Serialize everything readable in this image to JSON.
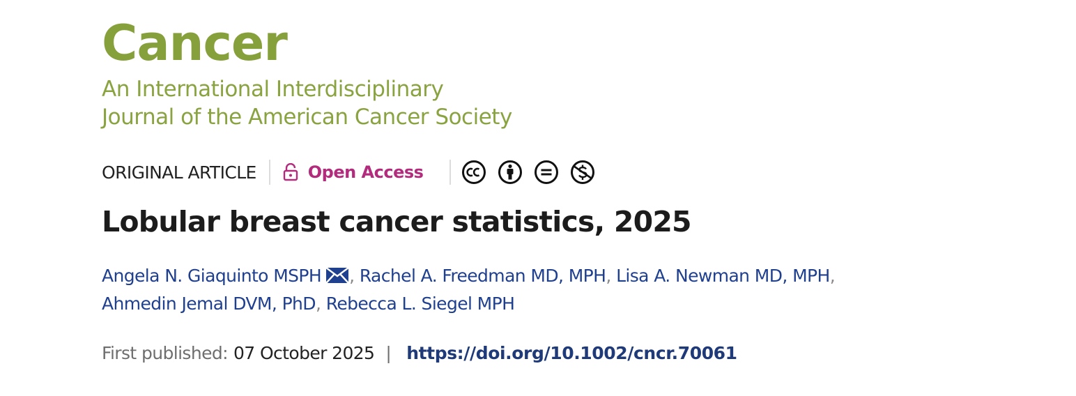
{
  "journal": {
    "name": "Cancer",
    "subtitle_line1": "An International Interdisciplinary",
    "subtitle_line2": "Journal of the American Cancer Society",
    "brand_color": "#86a03c"
  },
  "meta": {
    "article_type": "ORIGINAL ARTICLE",
    "open_access_label": "Open Access",
    "open_access_color": "#b32b7c",
    "license_icons": [
      "cc-icon",
      "by-attribution-icon",
      "nd-no-derivatives-icon",
      "nc-non-commercial-icon"
    ]
  },
  "article": {
    "title": "Lobular breast cancer statistics, 2025"
  },
  "authors": [
    {
      "name": "Angela N. Giaquinto MSPH",
      "corresponding": true
    },
    {
      "name": "Rachel A. Freedman MD, MPH"
    },
    {
      "name": "Lisa A. Newman MD, MPH"
    },
    {
      "name": "Ahmedin Jemal DVM, PhD"
    },
    {
      "name": "Rebecca L. Siegel MPH"
    }
  ],
  "author_separator": ",",
  "publication": {
    "first_published_label": "First published:",
    "date": "07 October 2025",
    "separator": "|",
    "doi": "https://doi.org/10.1002/cncr.70061"
  }
}
